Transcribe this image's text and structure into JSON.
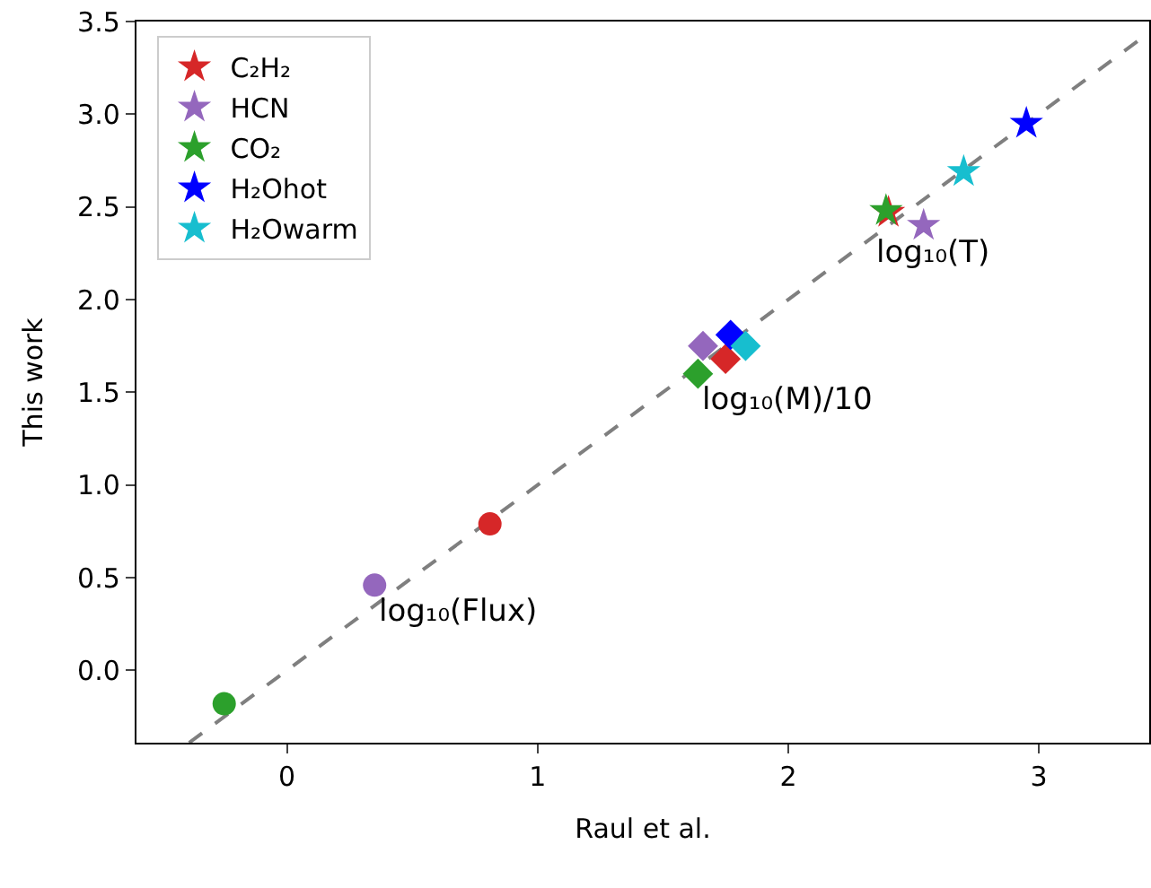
{
  "chart_data": {
    "type": "scatter",
    "xlabel": "Raul et al.",
    "ylabel": "This work",
    "xlim": [
      -0.6,
      3.44
    ],
    "ylim": [
      -0.39,
      3.5
    ],
    "xticks": [
      0,
      1,
      2,
      3
    ],
    "yticks": [
      {
        "value": 0,
        "label": "0.0"
      },
      {
        "value": 0.5,
        "label": "0.5"
      },
      {
        "value": 1,
        "label": "1.0"
      },
      {
        "value": 1.5,
        "label": "1.5"
      },
      {
        "value": 2,
        "label": "2.0"
      },
      {
        "value": 2.5,
        "label": "2.5"
      },
      {
        "value": 3,
        "label": "3.0"
      },
      {
        "value": 3.5,
        "label": "3.5"
      }
    ],
    "legend": "top left",
    "series": [
      {
        "type": "line",
        "x": [
          -0.39,
          3.44
        ],
        "values": [
          -0.39,
          3.44
        ],
        "color": "#7f7f7f",
        "line_style": "dashed",
        "marker": "none"
      },
      {
        "x": [
          -0.25,
          0.35,
          0.81
        ],
        "values": [
          -0.18,
          0.46,
          0.79
        ],
        "colors": [
          "#2ca02c",
          "#9467bd",
          "#d62728"
        ],
        "marker": "circle"
      },
      {
        "x": [
          1.64,
          1.66,
          1.75,
          1.77,
          1.83
        ],
        "values": [
          1.6,
          1.75,
          1.68,
          1.81,
          1.75
        ],
        "colors": [
          "#2ca02c",
          "#9467bd",
          "#d62728",
          "#0000ff",
          "#17becf"
        ],
        "marker": "diamond"
      },
      {
        "name": "C₂H₂",
        "x": [
          2.4
        ],
        "values": [
          2.47
        ],
        "color": "#d62728",
        "marker": "star"
      },
      {
        "name": "HCN",
        "x": [
          2.54
        ],
        "values": [
          2.4
        ],
        "color": "#9467bd",
        "marker": "star"
      },
      {
        "name": "CO₂",
        "x": [
          2.39
        ],
        "values": [
          2.48
        ],
        "color": "#2ca02c",
        "marker": "star"
      },
      {
        "name": "H₂Ohot",
        "x": [
          2.95
        ],
        "values": [
          2.95
        ],
        "color": "#0000ff",
        "marker": "star"
      },
      {
        "name": "H₂Owarm",
        "x": [
          2.7
        ],
        "values": [
          2.69
        ],
        "color": "#17becf",
        "marker": "star"
      }
    ],
    "annotations": [
      {
        "text": "log₁₀(Flux)",
        "x": 0.35,
        "y": 0.46
      },
      {
        "text": "log₁₀(M)/10",
        "x": 1.64,
        "y": 1.6
      },
      {
        "text": "log₁₀(T)",
        "x": 2.34,
        "y": 2.4
      }
    ]
  }
}
